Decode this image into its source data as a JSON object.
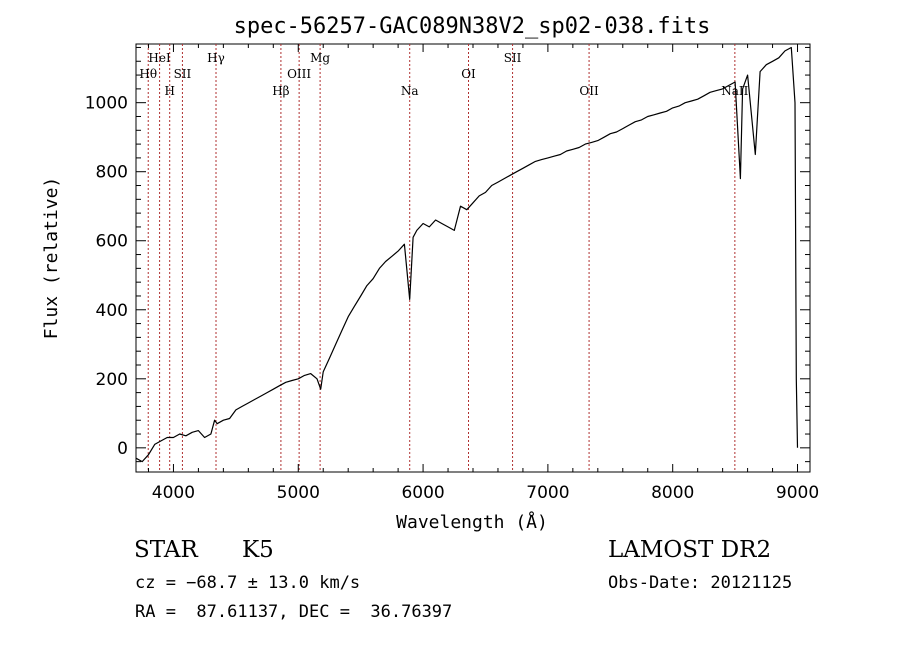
{
  "chart_data": {
    "type": "line",
    "title": "spec-56257-GAC089N38V2_sp02-038.fits",
    "xlabel": "Wavelength (Å)",
    "ylabel": "Flux (relative)",
    "xlim": [
      3700,
      9100
    ],
    "ylim": [
      -70,
      1170
    ],
    "x_ticks": [
      4000,
      5000,
      6000,
      7000,
      8000,
      9000
    ],
    "x_tick_labels": [
      "4000",
      "5000",
      "6000",
      "7000",
      "8000",
      "9000"
    ],
    "y_ticks": [
      0,
      200,
      400,
      600,
      800,
      1000
    ],
    "y_tick_labels": [
      "0",
      "200",
      "400",
      "600",
      "800",
      "1000"
    ],
    "line_color": "#000000",
    "marker_color": "#b03030",
    "series": [
      {
        "x": [
          3700,
          3750,
          3800,
          3850,
          3900,
          3950,
          4000,
          4050,
          4100,
          4150,
          4200,
          4250,
          4300,
          4330,
          4350,
          4400,
          4450,
          4500,
          4550,
          4600,
          4650,
          4700,
          4750,
          4800,
          4850,
          4900,
          4950,
          5000,
          5050,
          5100,
          5150,
          5180,
          5200,
          5250,
          5300,
          5350,
          5400,
          5450,
          5500,
          5550,
          5600,
          5650,
          5700,
          5750,
          5800,
          5850,
          5893,
          5920,
          5950,
          6000,
          6050,
          6100,
          6150,
          6200,
          6250,
          6300,
          6350,
          6400,
          6450,
          6500,
          6550,
          6600,
          6650,
          6700,
          6750,
          6800,
          6850,
          6900,
          6950,
          7000,
          7050,
          7100,
          7150,
          7200,
          7250,
          7300,
          7350,
          7400,
          7450,
          7500,
          7550,
          7600,
          7650,
          7700,
          7750,
          7800,
          7850,
          7900,
          7950,
          8000,
          8050,
          8100,
          8150,
          8200,
          8250,
          8300,
          8350,
          8400,
          8450,
          8500,
          8542,
          8560,
          8600,
          8662,
          8700,
          8750,
          8800,
          8850,
          8900,
          8950,
          8980,
          8990,
          9000
        ],
        "y": [
          -30,
          -40,
          -20,
          10,
          20,
          30,
          30,
          40,
          35,
          45,
          50,
          30,
          40,
          80,
          70,
          80,
          85,
          110,
          120,
          130,
          140,
          150,
          160,
          170,
          180,
          190,
          195,
          200,
          210,
          215,
          200,
          170,
          220,
          260,
          300,
          340,
          380,
          410,
          440,
          470,
          490,
          520,
          540,
          555,
          570,
          590,
          430,
          610,
          630,
          650,
          640,
          660,
          650,
          640,
          630,
          700,
          690,
          710,
          730,
          740,
          760,
          770,
          780,
          790,
          800,
          810,
          820,
          830,
          835,
          840,
          845,
          850,
          860,
          865,
          870,
          880,
          885,
          890,
          900,
          910,
          915,
          925,
          935,
          945,
          950,
          960,
          965,
          970,
          975,
          985,
          990,
          1000,
          1005,
          1010,
          1020,
          1030,
          1035,
          1040,
          1050,
          1060,
          780,
          1040,
          1080,
          850,
          1090,
          1110,
          1120,
          1130,
          1150,
          1160,
          1000,
          200,
          0
        ]
      }
    ],
    "lines": [
      {
        "label": "Hθ",
        "x": 3798,
        "row": 2
      },
      {
        "label": "HeI",
        "x": 3889,
        "row": 1
      },
      {
        "label": "H",
        "x": 3970,
        "row": 3
      },
      {
        "label": "SII",
        "x": 4072,
        "row": 2
      },
      {
        "label": "Hγ",
        "x": 4341,
        "row": 1
      },
      {
        "label": "Hβ",
        "x": 4861,
        "row": 3
      },
      {
        "label": "OIII",
        "x": 5007,
        "row": 2
      },
      {
        "label": "Mg",
        "x": 5175,
        "row": 1
      },
      {
        "label": "Na",
        "x": 5893,
        "row": 3
      },
      {
        "label": "OI",
        "x": 6364,
        "row": 2
      },
      {
        "label": "SII",
        "x": 6717,
        "row": 1
      },
      {
        "label": "OII",
        "x": 7330,
        "row": 3
      },
      {
        "label": "NaII",
        "x": 8498,
        "row": 3
      }
    ]
  },
  "info": {
    "object_class": "STAR",
    "subclass": "K5",
    "survey": "LAMOST DR2",
    "velocity": "cz = −68.7 ± 13.0 km/s",
    "obs_date": "Obs-Date: 20121125",
    "coords": "RA =  87.61137, DEC =  36.76397"
  }
}
